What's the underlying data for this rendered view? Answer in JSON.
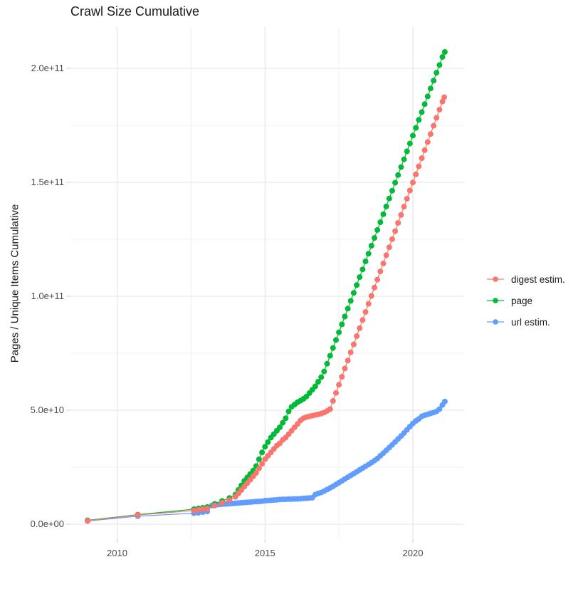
{
  "title": "Crawl Size Cumulative",
  "chart_data": {
    "type": "line",
    "marker": "circle",
    "title": "Crawl Size Cumulative",
    "xlabel": "",
    "ylabel": "Pages / Unique Items Cumulative",
    "x_unit": "year",
    "xlim": [
      2008.4,
      2021.7
    ],
    "ylim": [
      0,
      215000000000
    ],
    "grid": true,
    "legend_position": "right",
    "x_ticks": [
      {
        "value": 2010,
        "label": "2010"
      },
      {
        "value": 2015,
        "label": "2015"
      },
      {
        "value": 2020,
        "label": "2020"
      }
    ],
    "x_minor": [
      2012.5,
      2017.5
    ],
    "y_ticks": [
      {
        "value": 0,
        "label": "0.0e+00"
      },
      {
        "value": 50000000000,
        "label": "5.0e+10"
      },
      {
        "value": 100000000000,
        "label": "1.0e+11"
      },
      {
        "value": 150000000000,
        "label": "1.5e+11"
      },
      {
        "value": 200000000000,
        "label": "2.0e+11"
      }
    ],
    "y_minor": [
      25000000000,
      75000000000,
      125000000000,
      175000000000
    ],
    "value_scale": 1000000000,
    "value_unit": "items cumulative (point values are in billions, i.e. x1e9)",
    "series": [
      {
        "name": "digest estim.",
        "color": "#F8766D",
        "points": [
          [
            2009,
            1.5
          ],
          [
            2010.7,
            4
          ],
          [
            2012.6,
            6
          ],
          [
            2012.75,
            6.3
          ],
          [
            2012.9,
            6.6
          ],
          [
            2013.05,
            6.9
          ],
          [
            2013.3,
            8.2
          ],
          [
            2013.55,
            9.4
          ],
          [
            2013.8,
            10.6
          ],
          [
            2014,
            12
          ],
          [
            2014.1,
            13.5
          ],
          [
            2014.2,
            15
          ],
          [
            2014.3,
            16.5
          ],
          [
            2014.4,
            18
          ],
          [
            2014.5,
            19.5
          ],
          [
            2014.6,
            21
          ],
          [
            2014.7,
            22.5
          ],
          [
            2014.8,
            24.5
          ],
          [
            2014.9,
            26.5
          ],
          [
            2015,
            28.5
          ],
          [
            2015.1,
            30
          ],
          [
            2015.2,
            31.5
          ],
          [
            2015.3,
            33
          ],
          [
            2015.4,
            34.5
          ],
          [
            2015.5,
            35.5
          ],
          [
            2015.6,
            37
          ],
          [
            2015.7,
            38
          ],
          [
            2015.8,
            39.5
          ],
          [
            2015.9,
            41
          ],
          [
            2016,
            42.5
          ],
          [
            2016.1,
            44
          ],
          [
            2016.2,
            45.5
          ],
          [
            2016.3,
            46.5
          ],
          [
            2016.4,
            47
          ],
          [
            2016.5,
            47.3
          ],
          [
            2016.6,
            47.6
          ],
          [
            2016.7,
            47.9
          ],
          [
            2016.8,
            48.2
          ],
          [
            2016.9,
            48.5
          ],
          [
            2017,
            49
          ],
          [
            2017.1,
            49.7
          ],
          [
            2017.2,
            50.5
          ],
          [
            2017.3,
            54.1
          ],
          [
            2017.4,
            57.6
          ],
          [
            2017.5,
            61.2
          ],
          [
            2017.6,
            64.7
          ],
          [
            2017.7,
            68.3
          ],
          [
            2017.8,
            71.8
          ],
          [
            2017.9,
            75.4
          ],
          [
            2018,
            78.9
          ],
          [
            2018.1,
            82.5
          ],
          [
            2018.2,
            86
          ],
          [
            2018.3,
            89.6
          ],
          [
            2018.4,
            93.1
          ],
          [
            2018.5,
            96.7
          ],
          [
            2018.6,
            100.2
          ],
          [
            2018.7,
            103.8
          ],
          [
            2018.8,
            107.3
          ],
          [
            2018.9,
            110.9
          ],
          [
            2019,
            114.4
          ],
          [
            2019.1,
            118
          ],
          [
            2019.2,
            121.5
          ],
          [
            2019.3,
            125.1
          ],
          [
            2019.4,
            128.6
          ],
          [
            2019.5,
            132.2
          ],
          [
            2019.6,
            135.7
          ],
          [
            2019.7,
            139.3
          ],
          [
            2019.8,
            142.8
          ],
          [
            2019.9,
            146.4
          ],
          [
            2020,
            149.9
          ],
          [
            2020.1,
            153.5
          ],
          [
            2020.2,
            157
          ],
          [
            2020.3,
            160.6
          ],
          [
            2020.4,
            164.1
          ],
          [
            2020.5,
            167.7
          ],
          [
            2020.6,
            171.2
          ],
          [
            2020.7,
            174.8
          ],
          [
            2020.8,
            178.3
          ],
          [
            2020.9,
            181.9
          ],
          [
            2021,
            185.4
          ],
          [
            2021.06,
            187.3
          ]
        ]
      },
      {
        "name": "page",
        "color": "#00BA38",
        "points": [
          [
            2009,
            1.7
          ],
          [
            2010.7,
            4.2
          ],
          [
            2012.6,
            6.6
          ],
          [
            2012.75,
            6.9
          ],
          [
            2012.9,
            7.2
          ],
          [
            2013.05,
            7.5
          ],
          [
            2013.3,
            8.9
          ],
          [
            2013.55,
            10.2
          ],
          [
            2013.8,
            11.5
          ],
          [
            2014,
            13
          ],
          [
            2014.1,
            15
          ],
          [
            2014.2,
            17
          ],
          [
            2014.3,
            19
          ],
          [
            2014.4,
            20.5
          ],
          [
            2014.5,
            22
          ],
          [
            2014.6,
            23.5
          ],
          [
            2014.7,
            25.5
          ],
          [
            2014.8,
            28.5
          ],
          [
            2014.9,
            31.5
          ],
          [
            2015,
            34
          ],
          [
            2015.1,
            36
          ],
          [
            2015.2,
            38
          ],
          [
            2015.3,
            39.5
          ],
          [
            2015.4,
            41
          ],
          [
            2015.5,
            42.5
          ],
          [
            2015.6,
            44.5
          ],
          [
            2015.7,
            46.5
          ],
          [
            2015.8,
            49.5
          ],
          [
            2015.9,
            51.5
          ],
          [
            2016,
            52.5
          ],
          [
            2016.1,
            53.5
          ],
          [
            2016.2,
            54.2
          ],
          [
            2016.3,
            55
          ],
          [
            2016.4,
            56
          ],
          [
            2016.5,
            57.5
          ],
          [
            2016.6,
            59
          ],
          [
            2016.7,
            60.5
          ],
          [
            2016.8,
            62.5
          ],
          [
            2016.9,
            64.5
          ],
          [
            2017,
            67
          ],
          [
            2017.1,
            70.4
          ],
          [
            2017.2,
            73.9
          ],
          [
            2017.3,
            77.3
          ],
          [
            2017.4,
            80.8
          ],
          [
            2017.5,
            84.2
          ],
          [
            2017.6,
            87.7
          ],
          [
            2017.7,
            91.1
          ],
          [
            2017.8,
            94.6
          ],
          [
            2017.9,
            98
          ],
          [
            2018,
            101.5
          ],
          [
            2018.1,
            104.9
          ],
          [
            2018.2,
            108.4
          ],
          [
            2018.3,
            111.8
          ],
          [
            2018.4,
            115.3
          ],
          [
            2018.5,
            118.7
          ],
          [
            2018.6,
            122.2
          ],
          [
            2018.7,
            125.6
          ],
          [
            2018.8,
            129.1
          ],
          [
            2018.9,
            132.5
          ],
          [
            2019,
            136
          ],
          [
            2019.1,
            139.4
          ],
          [
            2019.2,
            142.9
          ],
          [
            2019.3,
            146.3
          ],
          [
            2019.4,
            149.8
          ],
          [
            2019.5,
            153.2
          ],
          [
            2019.6,
            156.7
          ],
          [
            2019.7,
            160.1
          ],
          [
            2019.8,
            163.6
          ],
          [
            2019.9,
            167
          ],
          [
            2020,
            170.5
          ],
          [
            2020.1,
            173.9
          ],
          [
            2020.2,
            177.4
          ],
          [
            2020.3,
            180.8
          ],
          [
            2020.4,
            184.3
          ],
          [
            2020.5,
            187.7
          ],
          [
            2020.6,
            191.2
          ],
          [
            2020.7,
            194.6
          ],
          [
            2020.8,
            198.1
          ],
          [
            2020.9,
            201.5
          ],
          [
            2021,
            205
          ],
          [
            2021.08,
            207.2
          ]
        ]
      },
      {
        "name": "url estim.",
        "color": "#619CFF",
        "points": [
          [
            2009,
            1.4
          ],
          [
            2010.7,
            3.5
          ],
          [
            2012.6,
            4.8
          ],
          [
            2012.75,
            5
          ],
          [
            2012.9,
            5.3
          ],
          [
            2013.05,
            5.6
          ],
          [
            2013.2,
            8.2
          ],
          [
            2013.3,
            8.4
          ],
          [
            2013.4,
            8.6
          ],
          [
            2013.5,
            8.7
          ],
          [
            2013.6,
            8.8
          ],
          [
            2013.7,
            8.9
          ],
          [
            2013.8,
            9
          ],
          [
            2013.9,
            9.1
          ],
          [
            2014,
            9.2
          ],
          [
            2014.1,
            9.3
          ],
          [
            2014.2,
            9.4
          ],
          [
            2014.3,
            9.5
          ],
          [
            2014.4,
            9.6
          ],
          [
            2014.5,
            9.7
          ],
          [
            2014.6,
            9.8
          ],
          [
            2014.7,
            9.9
          ],
          [
            2014.8,
            10
          ],
          [
            2014.9,
            10.1
          ],
          [
            2015,
            10.3
          ],
          [
            2015.1,
            10.4
          ],
          [
            2015.2,
            10.5
          ],
          [
            2015.3,
            10.6
          ],
          [
            2015.4,
            10.7
          ],
          [
            2015.5,
            10.8
          ],
          [
            2015.6,
            10.9
          ],
          [
            2015.7,
            10.9
          ],
          [
            2015.8,
            11
          ],
          [
            2015.9,
            11
          ],
          [
            2016,
            11.1
          ],
          [
            2016.1,
            11.1
          ],
          [
            2016.2,
            11.2
          ],
          [
            2016.3,
            11.3
          ],
          [
            2016.4,
            11.4
          ],
          [
            2016.5,
            11.5
          ],
          [
            2016.6,
            11.6
          ],
          [
            2016.7,
            13
          ],
          [
            2016.8,
            13.5
          ],
          [
            2016.9,
            13.9
          ],
          [
            2017,
            14.5
          ],
          [
            2017.1,
            15.2
          ],
          [
            2017.2,
            15.9
          ],
          [
            2017.3,
            16.6
          ],
          [
            2017.4,
            17.4
          ],
          [
            2017.5,
            18.2
          ],
          [
            2017.6,
            19
          ],
          [
            2017.7,
            19.8
          ],
          [
            2017.8,
            20.6
          ],
          [
            2017.9,
            21.4
          ],
          [
            2018,
            22.2
          ],
          [
            2018.1,
            23
          ],
          [
            2018.2,
            23.8
          ],
          [
            2018.3,
            24.6
          ],
          [
            2018.4,
            25.4
          ],
          [
            2018.5,
            26.2
          ],
          [
            2018.6,
            27
          ],
          [
            2018.7,
            27.9
          ],
          [
            2018.8,
            28.8
          ],
          [
            2018.9,
            30
          ],
          [
            2019,
            31.2
          ],
          [
            2019.1,
            32.4
          ],
          [
            2019.2,
            33.6
          ],
          [
            2019.3,
            34.8
          ],
          [
            2019.4,
            36.1
          ],
          [
            2019.5,
            37.4
          ],
          [
            2019.6,
            38.7
          ],
          [
            2019.7,
            40
          ],
          [
            2019.8,
            41.4
          ],
          [
            2019.9,
            42.8
          ],
          [
            2020,
            44.2
          ],
          [
            2020.1,
            45.3
          ],
          [
            2020.2,
            46.2
          ],
          [
            2020.3,
            47.3
          ],
          [
            2020.4,
            47.8
          ],
          [
            2020.5,
            48.2
          ],
          [
            2020.6,
            48.6
          ],
          [
            2020.7,
            49
          ],
          [
            2020.8,
            49.5
          ],
          [
            2020.9,
            50.5
          ],
          [
            2021,
            52.3
          ],
          [
            2021.08,
            53.8
          ]
        ]
      }
    ]
  }
}
